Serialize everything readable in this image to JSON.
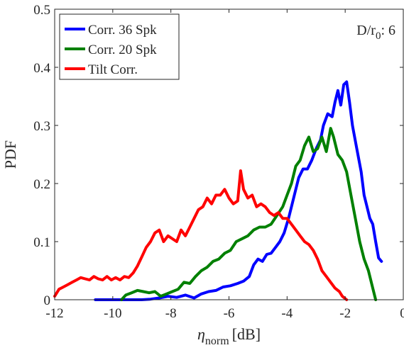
{
  "chart_data": {
    "type": "line",
    "title": "",
    "xlabel": "η_norm [dB]",
    "xlabel_parts": {
      "symbol": "η",
      "subscript": "norm",
      "unit": "[dB]"
    },
    "ylabel": "PDF",
    "xlim": [
      -12,
      0
    ],
    "ylim": [
      0,
      0.5
    ],
    "xticks": [
      -12,
      -10,
      -8,
      -6,
      -4,
      -2,
      0
    ],
    "xtick_labels": [
      "-12",
      "-10",
      "-8",
      "-6",
      "-4",
      "-2",
      "0"
    ],
    "yticks": [
      0,
      0.1,
      0.2,
      0.3,
      0.4,
      0.5
    ],
    "ytick_labels": [
      "0",
      "0.1",
      "0.2",
      "0.3",
      "0.4",
      "0.5"
    ],
    "grid": false,
    "legend_position": "top-left",
    "annotation": {
      "text_main": "D/r",
      "text_sub": "0",
      "text_tail": ": 6",
      "position": "top-right"
    },
    "series": [
      {
        "name": "Corr. 36 Spk",
        "color": "#0000ff",
        "points": [
          [
            -10.6,
            0
          ],
          [
            -10,
            0
          ],
          [
            -9.4,
            0
          ],
          [
            -9.0,
            0
          ],
          [
            -8.7,
            0.001
          ],
          [
            -8.4,
            0.003
          ],
          [
            -8.1,
            0.006
          ],
          [
            -7.8,
            0.004
          ],
          [
            -7.5,
            0.008
          ],
          [
            -7.2,
            0.003
          ],
          [
            -6.95,
            0.01
          ],
          [
            -6.7,
            0.014
          ],
          [
            -6.45,
            0.016
          ],
          [
            -6.2,
            0.022
          ],
          [
            -5.95,
            0.024
          ],
          [
            -5.7,
            0.028
          ],
          [
            -5.5,
            0.032
          ],
          [
            -5.3,
            0.04
          ],
          [
            -5.15,
            0.06
          ],
          [
            -5.0,
            0.07
          ],
          [
            -4.85,
            0.066
          ],
          [
            -4.7,
            0.078
          ],
          [
            -4.55,
            0.08
          ],
          [
            -4.4,
            0.09
          ],
          [
            -4.25,
            0.1
          ],
          [
            -4.1,
            0.115
          ],
          [
            -3.95,
            0.14
          ],
          [
            -3.85,
            0.16
          ],
          [
            -3.7,
            0.19
          ],
          [
            -3.6,
            0.21
          ],
          [
            -3.45,
            0.225
          ],
          [
            -3.3,
            0.225
          ],
          [
            -3.15,
            0.24
          ],
          [
            -3.0,
            0.26
          ],
          [
            -2.85,
            0.275
          ],
          [
            -2.75,
            0.3
          ],
          [
            -2.6,
            0.32
          ],
          [
            -2.45,
            0.315
          ],
          [
            -2.35,
            0.34
          ],
          [
            -2.25,
            0.36
          ],
          [
            -2.15,
            0.335
          ],
          [
            -2.05,
            0.37
          ],
          [
            -1.95,
            0.375
          ],
          [
            -1.85,
            0.34
          ],
          [
            -1.75,
            0.3
          ],
          [
            -1.6,
            0.26
          ],
          [
            -1.45,
            0.22
          ],
          [
            -1.35,
            0.18
          ],
          [
            -1.25,
            0.16
          ],
          [
            -1.15,
            0.14
          ],
          [
            -1.05,
            0.13
          ],
          [
            -0.95,
            0.1
          ],
          [
            -0.85,
            0.072
          ],
          [
            -0.75,
            0.066
          ]
        ]
      },
      {
        "name": "Corr. 20 Spk",
        "color": "#008000",
        "points": [
          [
            -9.7,
            0
          ],
          [
            -9.55,
            0.008
          ],
          [
            -9.35,
            0.012
          ],
          [
            -9.15,
            0.016
          ],
          [
            -8.95,
            0.014
          ],
          [
            -8.75,
            0.012
          ],
          [
            -8.55,
            0.014
          ],
          [
            -8.35,
            0.006
          ],
          [
            -8.15,
            0.01
          ],
          [
            -7.95,
            0.014
          ],
          [
            -7.75,
            0.018
          ],
          [
            -7.55,
            0.03
          ],
          [
            -7.35,
            0.028
          ],
          [
            -7.15,
            0.04
          ],
          [
            -6.95,
            0.05
          ],
          [
            -6.75,
            0.056
          ],
          [
            -6.55,
            0.066
          ],
          [
            -6.35,
            0.07
          ],
          [
            -6.15,
            0.08
          ],
          [
            -5.95,
            0.085
          ],
          [
            -5.75,
            0.1
          ],
          [
            -5.55,
            0.105
          ],
          [
            -5.35,
            0.11
          ],
          [
            -5.15,
            0.12
          ],
          [
            -4.95,
            0.125
          ],
          [
            -4.75,
            0.125
          ],
          [
            -4.55,
            0.13
          ],
          [
            -4.35,
            0.145
          ],
          [
            -4.15,
            0.16
          ],
          [
            -4.0,
            0.18
          ],
          [
            -3.85,
            0.2
          ],
          [
            -3.7,
            0.23
          ],
          [
            -3.55,
            0.24
          ],
          [
            -3.4,
            0.265
          ],
          [
            -3.25,
            0.28
          ],
          [
            -3.1,
            0.255
          ],
          [
            -2.95,
            0.26
          ],
          [
            -2.8,
            0.28
          ],
          [
            -2.65,
            0.255
          ],
          [
            -2.5,
            0.295
          ],
          [
            -2.4,
            0.28
          ],
          [
            -2.25,
            0.25
          ],
          [
            -2.1,
            0.24
          ],
          [
            -1.95,
            0.22
          ],
          [
            -1.8,
            0.18
          ],
          [
            -1.65,
            0.14
          ],
          [
            -1.5,
            0.1
          ],
          [
            -1.35,
            0.07
          ],
          [
            -1.2,
            0.05
          ],
          [
            -1.05,
            0.02
          ],
          [
            -0.95,
            0
          ]
        ]
      },
      {
        "name": "Tilt Corr.",
        "color": "#ff0000",
        "points": [
          [
            -12,
            0.006
          ],
          [
            -11.85,
            0.018
          ],
          [
            -11.7,
            0.022
          ],
          [
            -11.55,
            0.026
          ],
          [
            -11.4,
            0.03
          ],
          [
            -11.25,
            0.034
          ],
          [
            -11.1,
            0.038
          ],
          [
            -10.95,
            0.036
          ],
          [
            -10.8,
            0.034
          ],
          [
            -10.65,
            0.04
          ],
          [
            -10.5,
            0.036
          ],
          [
            -10.35,
            0.034
          ],
          [
            -10.2,
            0.04
          ],
          [
            -10.05,
            0.034
          ],
          [
            -9.9,
            0.038
          ],
          [
            -9.75,
            0.034
          ],
          [
            -9.6,
            0.04
          ],
          [
            -9.45,
            0.038
          ],
          [
            -9.3,
            0.046
          ],
          [
            -9.15,
            0.058
          ],
          [
            -9.0,
            0.074
          ],
          [
            -8.85,
            0.09
          ],
          [
            -8.7,
            0.1
          ],
          [
            -8.55,
            0.115
          ],
          [
            -8.4,
            0.12
          ],
          [
            -8.25,
            0.1
          ],
          [
            -8.1,
            0.11
          ],
          [
            -7.95,
            0.105
          ],
          [
            -7.8,
            0.1
          ],
          [
            -7.65,
            0.12
          ],
          [
            -7.5,
            0.11
          ],
          [
            -7.35,
            0.125
          ],
          [
            -7.2,
            0.14
          ],
          [
            -7.05,
            0.155
          ],
          [
            -6.9,
            0.16
          ],
          [
            -6.75,
            0.175
          ],
          [
            -6.6,
            0.165
          ],
          [
            -6.45,
            0.18
          ],
          [
            -6.3,
            0.18
          ],
          [
            -6.15,
            0.19
          ],
          [
            -6.0,
            0.175
          ],
          [
            -5.85,
            0.165
          ],
          [
            -5.7,
            0.17
          ],
          [
            -5.6,
            0.222
          ],
          [
            -5.5,
            0.19
          ],
          [
            -5.35,
            0.175
          ],
          [
            -5.2,
            0.18
          ],
          [
            -5.05,
            0.16
          ],
          [
            -4.9,
            0.165
          ],
          [
            -4.75,
            0.16
          ],
          [
            -4.6,
            0.15
          ],
          [
            -4.45,
            0.145
          ],
          [
            -4.3,
            0.15
          ],
          [
            -4.15,
            0.14
          ],
          [
            -4.0,
            0.14
          ],
          [
            -3.85,
            0.13
          ],
          [
            -3.7,
            0.12
          ],
          [
            -3.55,
            0.11
          ],
          [
            -3.4,
            0.1
          ],
          [
            -3.25,
            0.095
          ],
          [
            -3.1,
            0.085
          ],
          [
            -2.95,
            0.07
          ],
          [
            -2.8,
            0.05
          ],
          [
            -2.65,
            0.04
          ],
          [
            -2.5,
            0.03
          ],
          [
            -2.35,
            0.02
          ],
          [
            -2.2,
            0.014
          ],
          [
            -2.1,
            0.006
          ],
          [
            -1.95,
            0
          ]
        ]
      }
    ]
  }
}
